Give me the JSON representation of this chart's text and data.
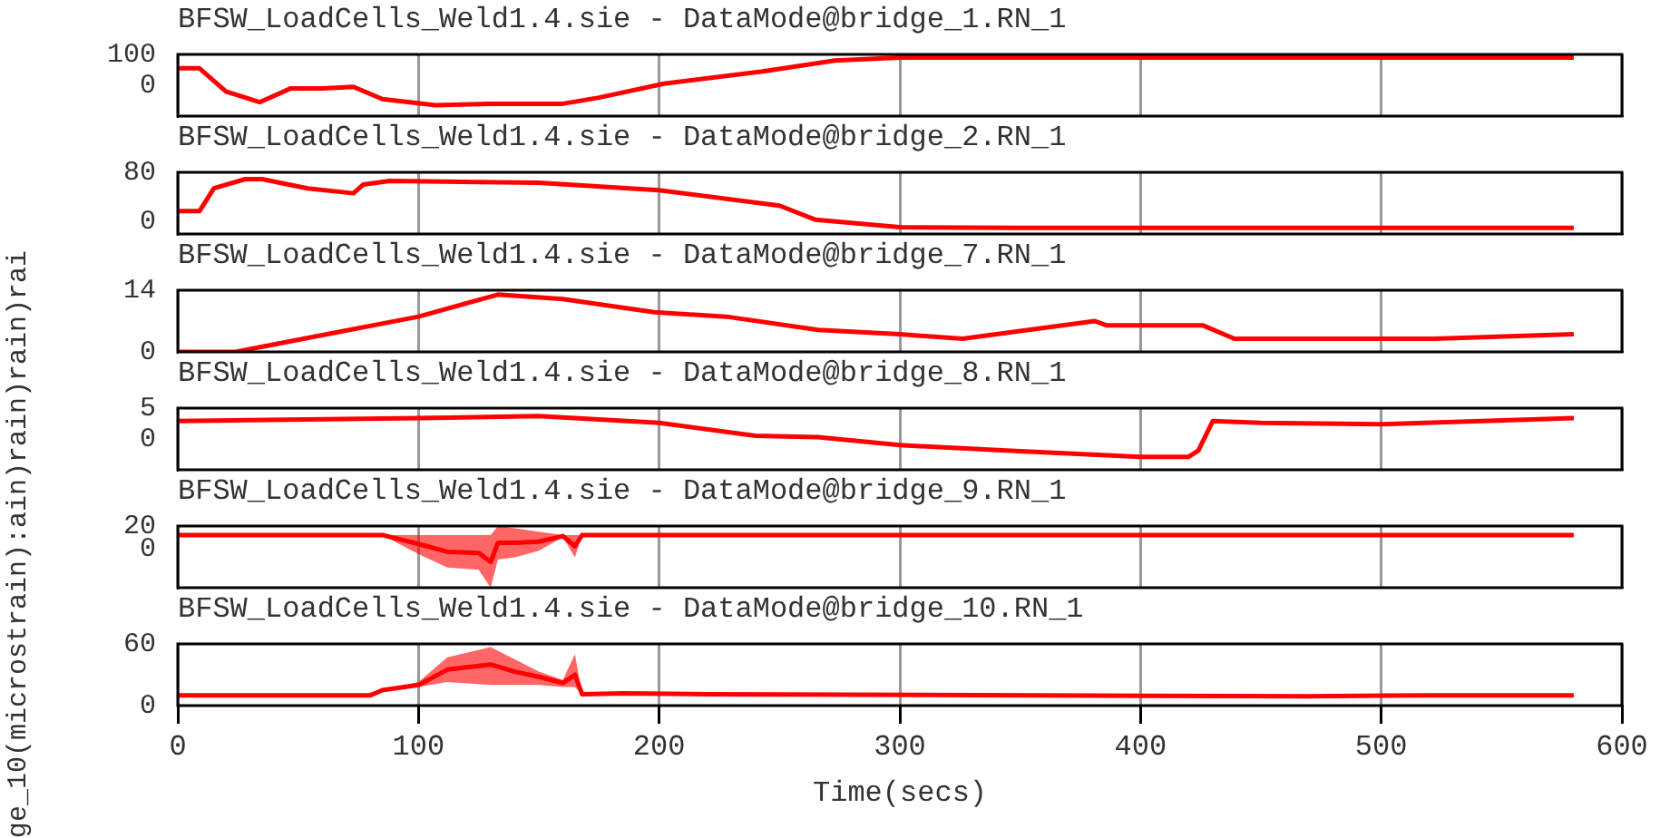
{
  "chart_data": [
    {
      "type": "line",
      "title": "BFSW_LoadCells_Weld1.4.sie - DataMode@bridge_1.RN_1",
      "x": [
        0,
        9,
        20,
        34,
        47,
        60,
        73,
        85,
        107,
        130,
        160,
        175,
        202,
        243,
        273,
        300,
        350,
        400,
        500,
        580
      ],
      "series": [
        {
          "color": "#ff0000",
          "values": [
            55,
            55,
            -20,
            -55,
            -10,
            -10,
            -5,
            -45,
            -65,
            -60,
            -60,
            -40,
            5,
            45,
            80,
            90,
            90,
            90,
            90,
            90
          ]
        }
      ],
      "xlim": [
        0,
        600
      ],
      "xticks": [
        0,
        100,
        200,
        300,
        400,
        500,
        600
      ],
      "ylim": [
        -100,
        100
      ],
      "yticks": [
        0,
        100
      ],
      "grid": "x",
      "tick_labels": "y"
    },
    {
      "type": "line",
      "title": "BFSW_LoadCells_Weld1.4.sie - DataMode@bridge_2.RN_1",
      "x": [
        0,
        9,
        15,
        28,
        35,
        54,
        73,
        77,
        88,
        150,
        200,
        250,
        265,
        300,
        350,
        580
      ],
      "series": [
        {
          "color": "#ff0000",
          "values": [
            17,
            17,
            54,
            69,
            69,
            54,
            46,
            60,
            66,
            63,
            51,
            26,
            3,
            -9,
            -10,
            -10
          ]
        }
      ],
      "xlim": [
        0,
        600
      ],
      "xticks": [
        0,
        100,
        200,
        300,
        400,
        500,
        600
      ],
      "ylim": [
        -20,
        80
      ],
      "yticks": [
        0,
        80
      ],
      "grid": "x",
      "tick_labels": "y"
    },
    {
      "type": "line",
      "title": "BFSW_LoadCells_Weld1.4.sie - DataMode@bridge_7.RN_1",
      "x": [
        0,
        24,
        62,
        100,
        133,
        160,
        198,
        228,
        266,
        300,
        326,
        381,
        386,
        426,
        439,
        500,
        522,
        580
      ],
      "series": [
        {
          "color": "#ff0000",
          "values": [
            0,
            0,
            4,
            8,
            13,
            12,
            9,
            8,
            5,
            4,
            3,
            7,
            6,
            6,
            3,
            3,
            3,
            4
          ]
        }
      ],
      "xlim": [
        0,
        600
      ],
      "xticks": [
        0,
        100,
        200,
        300,
        400,
        500,
        600
      ],
      "ylim": [
        0,
        14
      ],
      "yticks": [
        0,
        14
      ],
      "grid": "x",
      "tick_labels": "y"
    },
    {
      "type": "line",
      "title": "BFSW_LoadCells_Weld1.4.sie - DataMode@bridge_8.RN_1",
      "x": [
        0,
        100,
        150,
        200,
        240,
        266,
        300,
        350,
        400,
        420,
        424,
        430,
        450,
        500,
        580
      ],
      "series": [
        {
          "color": "#ff0000",
          "values": [
            2.9,
            3.4,
            3.7,
            2.6,
            0.5,
            0.3,
            -1,
            -2,
            -2.9,
            -2.9,
            -1.9,
            2.9,
            2.6,
            2.4,
            3.4
          ]
        }
      ],
      "xlim": [
        0,
        600
      ],
      "xticks": [
        0,
        100,
        200,
        300,
        400,
        500,
        600
      ],
      "ylim": [
        -5,
        5
      ],
      "yticks": [
        0,
        5
      ],
      "grid": "x",
      "tick_labels": "y"
    },
    {
      "type": "line",
      "title": "BFSW_LoadCells_Weld1.4.sie - DataMode@bridge_9.RN_1",
      "x": [
        0,
        85,
        100,
        112,
        125,
        130,
        133,
        140,
        150,
        160,
        165,
        168,
        300,
        580
      ],
      "series": [
        {
          "color": "#ff0000",
          "values": [
            12,
            12,
            4,
            -3,
            -4,
            -12,
            5,
            5,
            6,
            11,
            2,
            12,
            12,
            12
          ],
          "lower": [
            12,
            12,
            -5,
            -17,
            -19,
            -35,
            -10,
            -8,
            -2,
            10,
            -8,
            12,
            12,
            12
          ],
          "upper": [
            12,
            12,
            12,
            12,
            12,
            12,
            20,
            18,
            15,
            12,
            12,
            12,
            12,
            12
          ]
        }
      ],
      "xlim": [
        0,
        600
      ],
      "xticks": [
        0,
        100,
        200,
        300,
        400,
        500,
        600
      ],
      "ylim": [
        -35,
        20
      ],
      "yticks": [
        0,
        20
      ],
      "grid": "x",
      "tick_labels": "y"
    },
    {
      "type": "line",
      "title": "BFSW_LoadCells_Weld1.4.sie - DataMode@bridge_10.RN_1",
      "xlabel": "Time(secs)",
      "ylabel": "ge_10(microstrain):ain)rain)rain)rai",
      "x": [
        0,
        80,
        85,
        100,
        112,
        130,
        140,
        150,
        160,
        165,
        168,
        185,
        220,
        470,
        520,
        580
      ],
      "series": [
        {
          "color": "#ff0000",
          "values": [
            10,
            10,
            15,
            20,
            35,
            40,
            33,
            28,
            22,
            30,
            11,
            12,
            11,
            9,
            10,
            10
          ],
          "lower": [
            10,
            10,
            15,
            18,
            23,
            20,
            20,
            20,
            18,
            18,
            11,
            12,
            11,
            9,
            10,
            10
          ],
          "upper": [
            10,
            10,
            15,
            23,
            47,
            57,
            45,
            33,
            25,
            50,
            11,
            12,
            11,
            9,
            10,
            10
          ]
        }
      ],
      "xlim": [
        0,
        600
      ],
      "xticks": [
        0,
        100,
        200,
        300,
        400,
        500,
        600
      ],
      "ylim": [
        0,
        60
      ],
      "yticks": [
        0,
        60
      ],
      "grid": "x"
    }
  ]
}
